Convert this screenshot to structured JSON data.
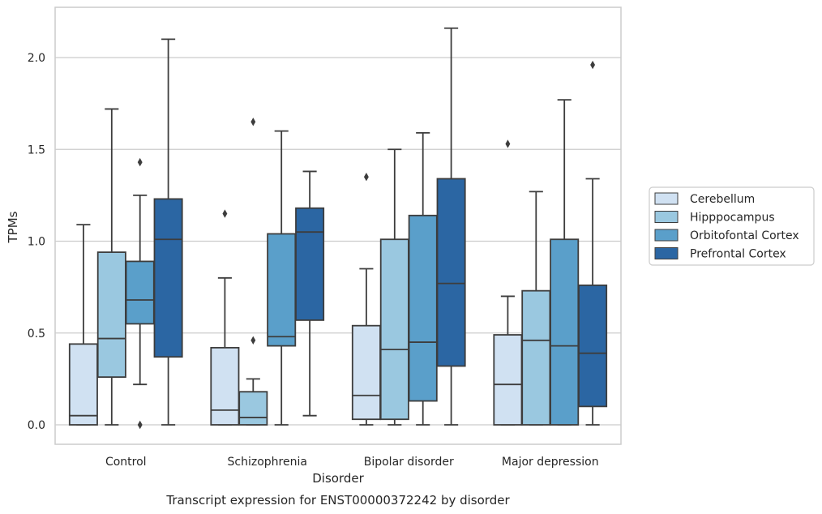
{
  "chart_data": {
    "type": "boxplot",
    "caption": "Transcript expression for ENST00000372242 by disorder",
    "xlabel": "Disorder",
    "ylabel": "TPMs",
    "ylim": [
      -0.1,
      2.28
    ],
    "yticks": [
      "0.0",
      "0.5",
      "1.0",
      "1.5",
      "2.0"
    ],
    "grid": "horizontal",
    "legend_position": "right",
    "categories": [
      "Control",
      "Schizophrenia",
      "Bipolar disorder",
      "Major depression"
    ],
    "series": [
      {
        "name": "Cerebellum",
        "color": "#d0e1f2",
        "boxes": [
          {
            "whisker_low": 0.0,
            "q1": 0.0,
            "median": 0.05,
            "q3": 0.44,
            "whisker_high": 1.09,
            "outliers": []
          },
          {
            "whisker_low": 0.0,
            "q1": 0.0,
            "median": 0.08,
            "q3": 0.42,
            "whisker_high": 0.8,
            "outliers": [
              1.15
            ]
          },
          {
            "whisker_low": 0.0,
            "q1": 0.03,
            "median": 0.16,
            "q3": 0.54,
            "whisker_high": 0.85,
            "outliers": [
              1.35
            ]
          },
          {
            "whisker_low": 0.0,
            "q1": 0.0,
            "median": 0.22,
            "q3": 0.49,
            "whisker_high": 0.7,
            "outliers": [
              1.53
            ]
          }
        ]
      },
      {
        "name": "Hipppocampus",
        "color": "#9ac8e0",
        "boxes": [
          {
            "whisker_low": 0.0,
            "q1": 0.26,
            "median": 0.47,
            "q3": 0.94,
            "whisker_high": 1.72,
            "outliers": []
          },
          {
            "whisker_low": 0.0,
            "q1": 0.0,
            "median": 0.04,
            "q3": 0.18,
            "whisker_high": 0.25,
            "outliers": [
              0.46,
              1.65
            ]
          },
          {
            "whisker_low": 0.0,
            "q1": 0.03,
            "median": 0.41,
            "q3": 1.01,
            "whisker_high": 1.5,
            "outliers": []
          },
          {
            "whisker_low": 0.0,
            "q1": 0.0,
            "median": 0.46,
            "q3": 0.73,
            "whisker_high": 1.27,
            "outliers": []
          }
        ]
      },
      {
        "name": "Orbitofontal Cortex",
        "color": "#5a9fca",
        "boxes": [
          {
            "whisker_low": 0.22,
            "q1": 0.55,
            "median": 0.68,
            "q3": 0.89,
            "whisker_high": 1.25,
            "outliers": [
              0.0,
              1.43
            ]
          },
          {
            "whisker_low": 0.0,
            "q1": 0.43,
            "median": 0.48,
            "q3": 1.04,
            "whisker_high": 1.6,
            "outliers": []
          },
          {
            "whisker_low": 0.0,
            "q1": 0.13,
            "median": 0.45,
            "q3": 1.14,
            "whisker_high": 1.59,
            "outliers": []
          },
          {
            "whisker_low": 0.0,
            "q1": 0.0,
            "median": 0.43,
            "q3": 1.01,
            "whisker_high": 1.77,
            "outliers": []
          }
        ]
      },
      {
        "name": "Prefrontal Cortex",
        "color": "#2b66a3",
        "boxes": [
          {
            "whisker_low": 0.0,
            "q1": 0.37,
            "median": 1.01,
            "q3": 1.23,
            "whisker_high": 2.1,
            "outliers": []
          },
          {
            "whisker_low": 0.05,
            "q1": 0.57,
            "median": 1.05,
            "q3": 1.18,
            "whisker_high": 1.38,
            "outliers": []
          },
          {
            "whisker_low": 0.0,
            "q1": 0.32,
            "median": 0.77,
            "q3": 1.34,
            "whisker_high": 2.16,
            "outliers": []
          },
          {
            "whisker_low": 0.0,
            "q1": 0.1,
            "median": 0.39,
            "q3": 0.76,
            "whisker_high": 1.34,
            "outliers": [
              1.96
            ]
          }
        ]
      }
    ]
  }
}
